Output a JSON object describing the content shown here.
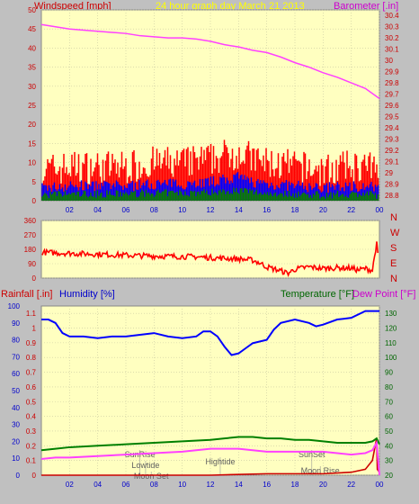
{
  "header": {
    "title": "24 hour graph day   March 21 2013",
    "left_label": "Windspeed [mph]",
    "right_label": "Barometer [.in]"
  },
  "colors": {
    "background": "#c0c0c0",
    "plot_bg": "#ffffc0",
    "title": "#ffff00",
    "wind": "#ff0000",
    "gust": "#ff0000",
    "avg_wind": "#0000ff",
    "low_wind": "#008000",
    "baro": "#ff40ff",
    "rain": "#cc0000",
    "humidity": "#0000ff",
    "temp": "#008000",
    "dew": "#ff40ff",
    "axis_red": "#cc0000",
    "axis_blue": "#0000cc",
    "axis_green": "#006600"
  },
  "x_ticks": [
    "02",
    "04",
    "06",
    "08",
    "10",
    "12",
    "14",
    "16",
    "18",
    "20",
    "22",
    "00"
  ],
  "panel1": {
    "left_ticks": [
      "0",
      "5",
      "10",
      "15",
      "20",
      "25",
      "30",
      "35",
      "40",
      "45",
      "50"
    ],
    "right_ticks": [
      "28.8",
      "28.9",
      "29",
      "29.1",
      "29.2",
      "29.3",
      "29.4",
      "29.5",
      "29.6",
      "29.7",
      "29.8",
      "29.9",
      "30",
      "30.1",
      "30.2",
      "30.3",
      "30.4"
    ]
  },
  "panel2": {
    "left_ticks": [
      "0",
      "90",
      "180",
      "270",
      "360"
    ],
    "compass": [
      "N",
      "W",
      "S",
      "E",
      "N"
    ]
  },
  "panel3": {
    "rain_label": "Rainfall [.in]",
    "humidity_label": "Humidity [%]",
    "temp_label": "Temperature [°F]",
    "dew_label": "Dew Point [°F]",
    "rain_ticks": [
      "0",
      "0.1",
      "0.2",
      "0.3",
      "0.4",
      "0.5",
      "0.6",
      "0.7",
      "0.8",
      "0.9",
      "1",
      "1.1"
    ],
    "humidity_ticks": [
      "0",
      "10",
      "20",
      "30",
      "40",
      "50",
      "60",
      "70",
      "80",
      "90",
      "100"
    ],
    "temp_ticks": [
      "20",
      "30",
      "40",
      "50",
      "60",
      "70",
      "80",
      "90",
      "100",
      "110",
      "120",
      "130"
    ],
    "annotations": [
      {
        "text": "SunRise",
        "hour": 7.0
      },
      {
        "text": "Lowtide",
        "hour": 7.4
      },
      {
        "text": "Moon Set",
        "hour": 7.8
      },
      {
        "text": "Hightide",
        "hour": 12.7
      },
      {
        "text": "SunSet",
        "hour": 19.2
      },
      {
        "text": "Moon Rise",
        "hour": 19.8
      }
    ]
  },
  "chart_data": [
    {
      "type": "line",
      "title": "24 hour graph day   March 21 2013",
      "x_unit": "hour of day",
      "x_range": [
        0,
        24
      ],
      "ylabel": "Windspeed [mph]",
      "y2label": "Barometer [.in]",
      "ylim": [
        0,
        50
      ],
      "y2lim": [
        28.75,
        30.45
      ],
      "series": [
        {
          "name": "Windspeed [mph]",
          "axis": "left",
          "x": [
            0,
            2,
            4,
            6,
            8,
            10,
            12,
            13,
            14,
            15,
            16,
            18,
            20,
            22,
            23,
            23.8
          ],
          "values": [
            6,
            7,
            7,
            7,
            8,
            8,
            9,
            10,
            11,
            9,
            8,
            7,
            6,
            7,
            7,
            6
          ]
        },
        {
          "name": "Barometer [.in]",
          "axis": "right",
          "x": [
            0,
            1,
            2,
            3,
            4,
            5,
            6,
            7,
            8,
            9,
            10,
            11,
            12,
            13,
            14,
            15,
            16,
            17,
            18,
            19,
            20,
            21,
            22,
            23,
            24
          ],
          "values": [
            30.32,
            30.3,
            30.28,
            30.27,
            30.26,
            30.25,
            30.24,
            30.22,
            30.21,
            30.2,
            30.2,
            30.19,
            30.17,
            30.14,
            30.12,
            30.09,
            30.07,
            30.03,
            29.98,
            29.94,
            29.89,
            29.85,
            29.8,
            29.75,
            29.66
          ]
        }
      ]
    },
    {
      "type": "line",
      "x_unit": "hour of day",
      "x_range": [
        0,
        24
      ],
      "ylabel": "",
      "ylim": [
        0,
        360
      ],
      "series": [
        {
          "name": "",
          "x": [
            0.2,
            1,
            2,
            3,
            4,
            5,
            6,
            7,
            8,
            9,
            10,
            11,
            12,
            13,
            14,
            15,
            15.5,
            16,
            17,
            17.5,
            18,
            19,
            20,
            21,
            22,
            22.5,
            23,
            23.5,
            23.8,
            24
          ],
          "values": [
            160,
            158,
            155,
            152,
            150,
            146,
            143,
            140,
            138,
            136,
            135,
            133,
            128,
            124,
            120,
            112,
            95,
            70,
            45,
            30,
            55,
            70,
            60,
            65,
            62,
            50,
            60,
            48,
            220,
            40
          ]
        }
      ]
    },
    {
      "type": "line",
      "x_unit": "hour of day",
      "x_range": [
        0,
        24
      ],
      "ylabel": "",
      "y_axes": {
        "rainfall": [
          0,
          1.15
        ],
        "humidity": [
          0,
          100
        ],
        "temperature": [
          20,
          135
        ]
      },
      "series": [
        {
          "name": "Rainfall [.in]",
          "axis": "rainfall",
          "x": [
            0,
            12,
            16,
            20,
            22,
            23,
            23.5,
            23.7,
            23.8,
            23.85,
            24
          ],
          "values": [
            0,
            0,
            0.01,
            0.01,
            0.02,
            0.04,
            0.1,
            0.2,
            0.25,
            0.04,
            0.02
          ]
        },
        {
          "name": "Humidity [%]",
          "axis": "humidity",
          "x": [
            0,
            0.5,
            1,
            1.5,
            2,
            3,
            4,
            5,
            6,
            7,
            8,
            9,
            10,
            11,
            11.5,
            12,
            12.5,
            13,
            13.5,
            14,
            14.5,
            15,
            16,
            16.5,
            17,
            18,
            19,
            19.5,
            20,
            21,
            22,
            23,
            24
          ],
          "values": [
            92,
            92,
            90,
            84,
            82,
            82,
            81,
            82,
            82,
            83,
            84,
            82,
            81,
            82,
            85,
            85,
            82,
            76,
            71,
            72,
            75,
            78,
            80,
            86,
            90,
            92,
            90,
            88,
            89,
            92,
            93,
            97,
            97
          ]
        },
        {
          "name": "Temperature [°F]",
          "axis": "temperature",
          "x": [
            0,
            1,
            2,
            4,
            6,
            8,
            10,
            12,
            13,
            14,
            15,
            16,
            17,
            18,
            19,
            20,
            21,
            22,
            23,
            23.5,
            23.8,
            24
          ],
          "values": [
            37,
            38,
            39,
            40,
            41,
            42,
            43,
            44,
            45,
            46,
            46,
            45,
            45,
            44,
            44,
            43,
            42,
            42,
            42,
            43,
            45,
            41
          ]
        },
        {
          "name": "Dew Point [°F]",
          "axis": "temperature",
          "x": [
            0,
            1,
            2,
            4,
            6,
            8,
            10,
            12,
            13,
            14,
            15,
            16,
            17,
            18,
            19,
            20,
            21,
            22,
            23,
            23.5,
            23.8,
            24
          ],
          "values": [
            31,
            32,
            32,
            33,
            34,
            35,
            36,
            38,
            38,
            38,
            37,
            36,
            36,
            36,
            36,
            36,
            35,
            34,
            35,
            37,
            42,
            20
          ]
        }
      ]
    }
  ]
}
